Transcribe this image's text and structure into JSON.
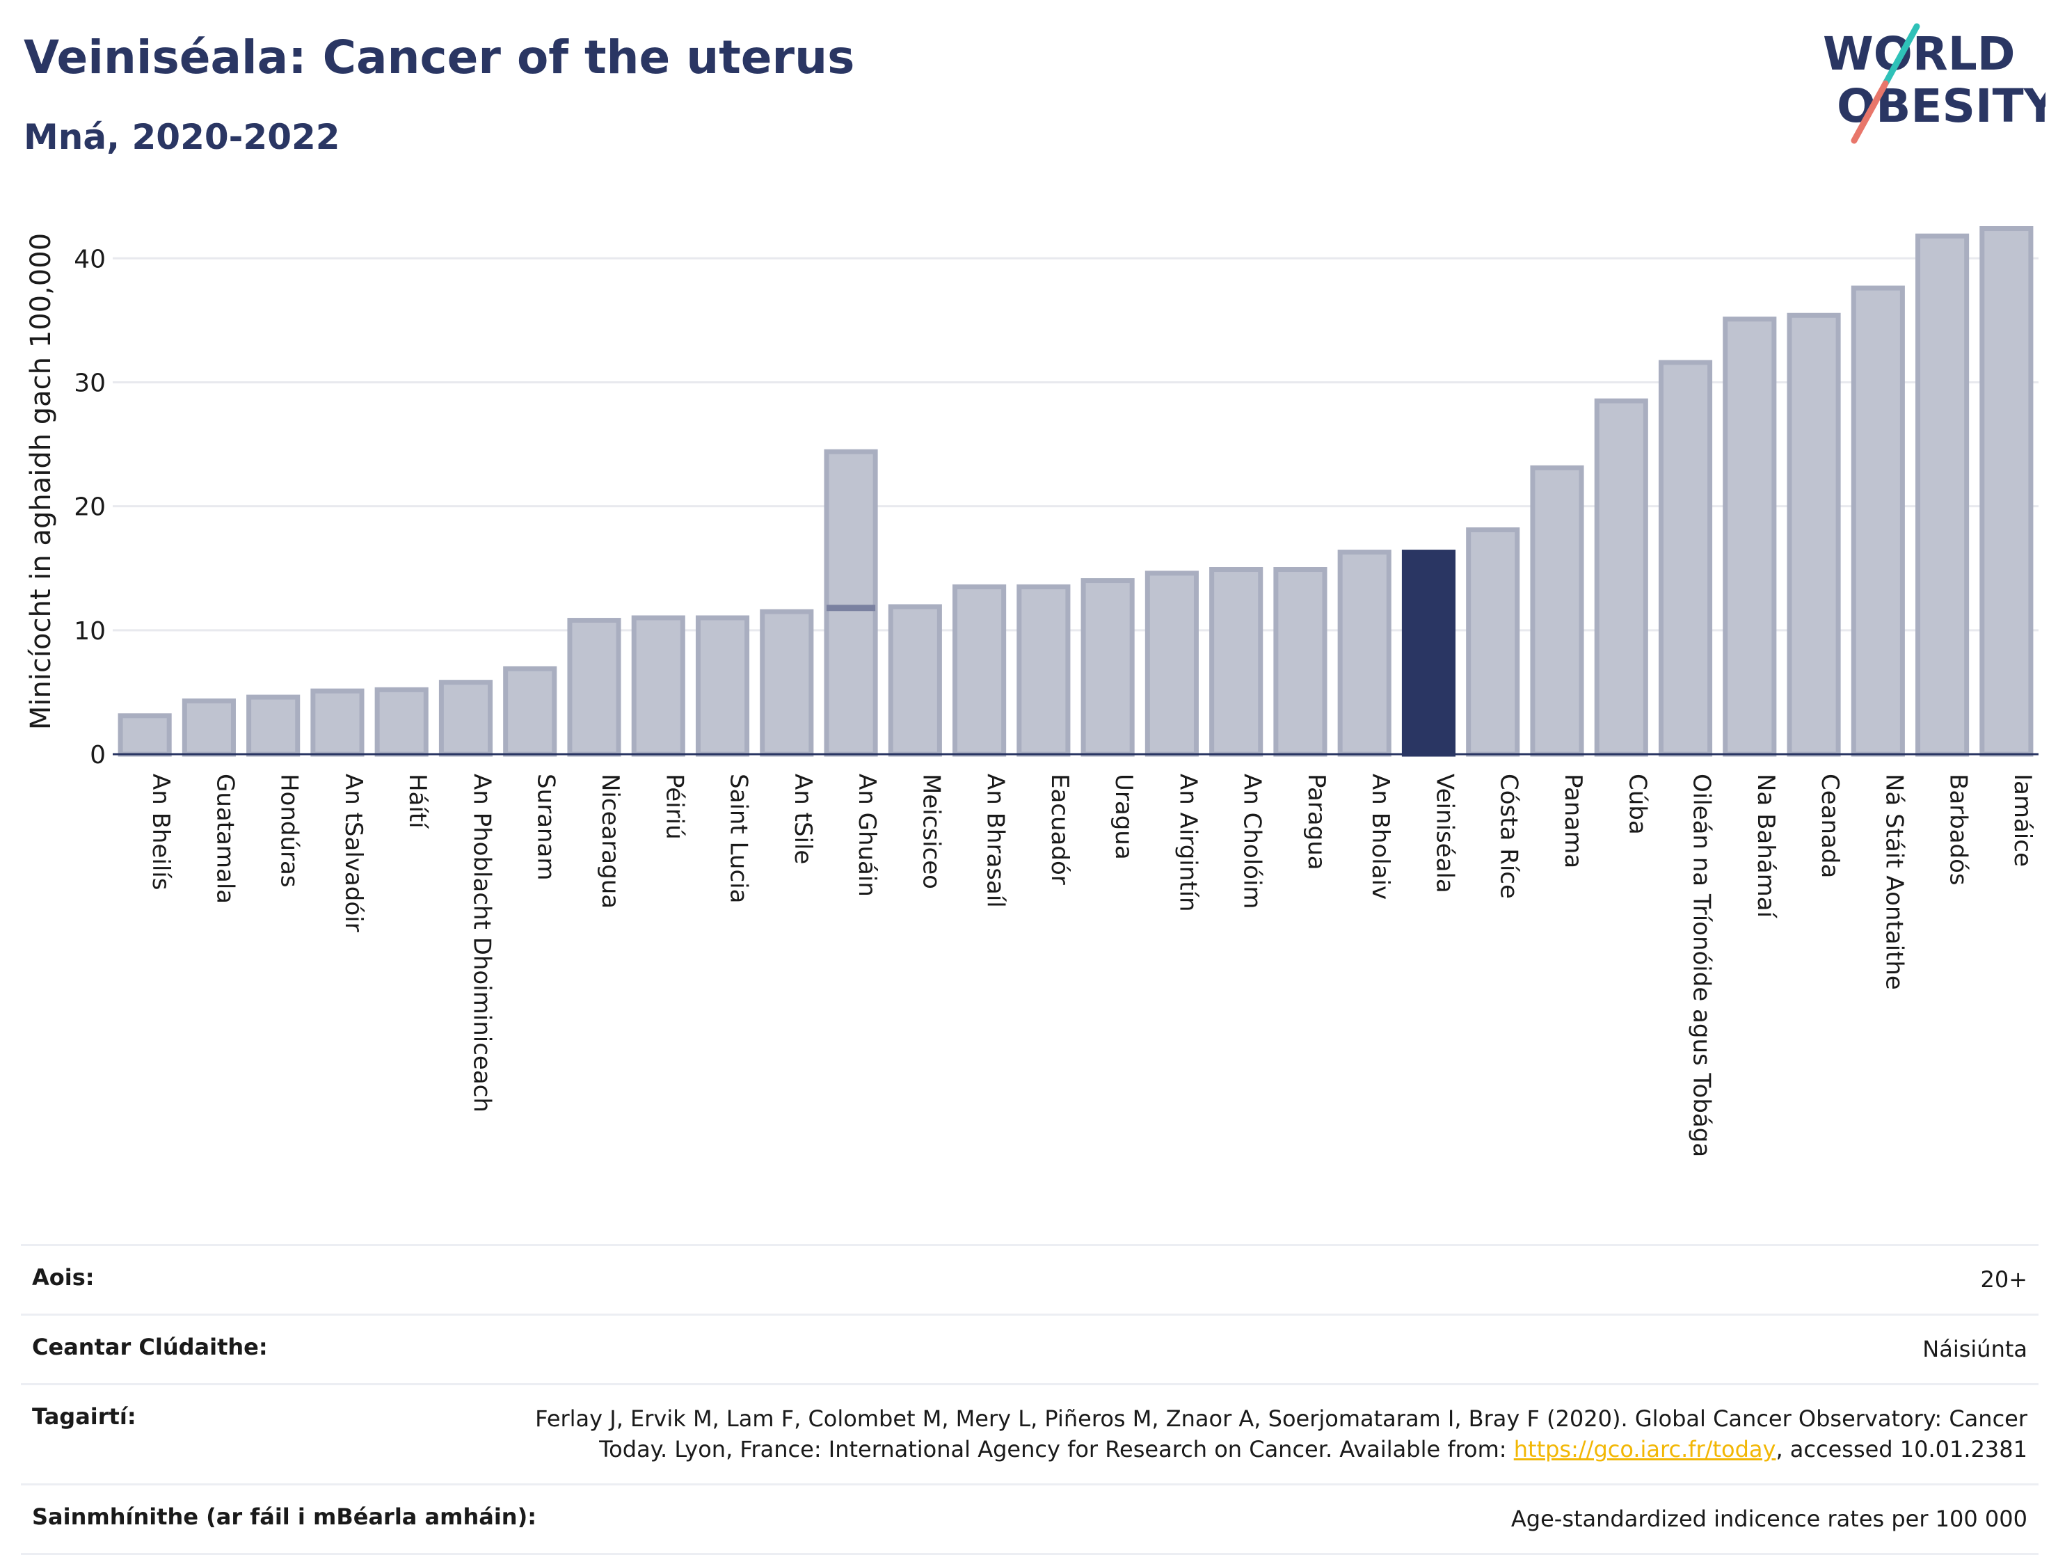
{
  "header": {
    "title": "Veiniséala: Cancer of the uterus",
    "subtitle": "Mná, 2020-2022"
  },
  "logo": {
    "line1": "WORLD",
    "line2": "OBESITY",
    "colors": [
      "#2a3663",
      "#2fc1b8",
      "#e8766a"
    ]
  },
  "chart_data": {
    "type": "bar",
    "ylabel": "Minicíocht in aghaidh gach 100,000",
    "ylim": [
      0,
      44
    ],
    "yticks": [
      0,
      10,
      20,
      30,
      40
    ],
    "grid": true,
    "highlight": "Veiniséala",
    "colors": {
      "bar": "#bfc3d0",
      "bar_edge": "#a9aec0",
      "highlight": "#2a3663",
      "range": "#7a81a0"
    },
    "categories": [
      "An Bheilís",
      "Guatamala",
      "Hondúras",
      "An tSalvadóir",
      "Háítí",
      "An Phoblacht Dhoiminiceach",
      "Suranam",
      "Nicearagua",
      "Péiriú",
      "Saint Lucia",
      "An tSile",
      "An Ghuáin",
      "Meicsiceo",
      "An Bhrasaíl",
      "Eacuadór",
      "Uragua",
      "An Airgintín",
      "An Cholóim",
      "Paragua",
      "An Bholaiv",
      "Veiniséala",
      "Cósta Ríce",
      "Panama",
      "Cúba",
      "Oileán na Tríonóide agus Tobága",
      "Na Bahámaí",
      "Ceanada",
      "Ná Stáit Aontaithe",
      "Barbadós",
      "Iamáice"
    ],
    "values": [
      3.1,
      4.3,
      4.6,
      5.1,
      5.2,
      5.8,
      6.9,
      10.8,
      11.0,
      11.0,
      11.5,
      24.4,
      11.9,
      13.5,
      13.5,
      14.0,
      14.6,
      14.9,
      14.9,
      16.3,
      16.3,
      18.1,
      23.1,
      28.5,
      31.6,
      35.1,
      35.4,
      37.6,
      41.8,
      42.4
    ],
    "range_low": {
      "An Ghuáin": 11.8
    }
  },
  "meta": {
    "age_label": "Aois:",
    "age_value": "20+",
    "coverage_label": "Ceantar Clúdaithe:",
    "coverage_value": "Náisiúnta",
    "references_label": "Tagairtí:",
    "references_line1": "Ferlay J, Ervik M, Lam F, Colombet M, Mery L, Piñeros M, Znaor A, Soerjomataram I, Bray F (2020). Global Cancer Observatory: Cancer",
    "references_line2_pre": "Today. Lyon, France: International Agency for Research on Cancer. Available from: ",
    "references_link": "https://gco.iarc.fr/today",
    "references_line2_post": ", accessed 10.01.2381",
    "definitions_label": "Sainmhínithe (ar fáil i mBéarla amháin):",
    "definitions_value": "Age-standardized indicence rates per 100 000"
  }
}
